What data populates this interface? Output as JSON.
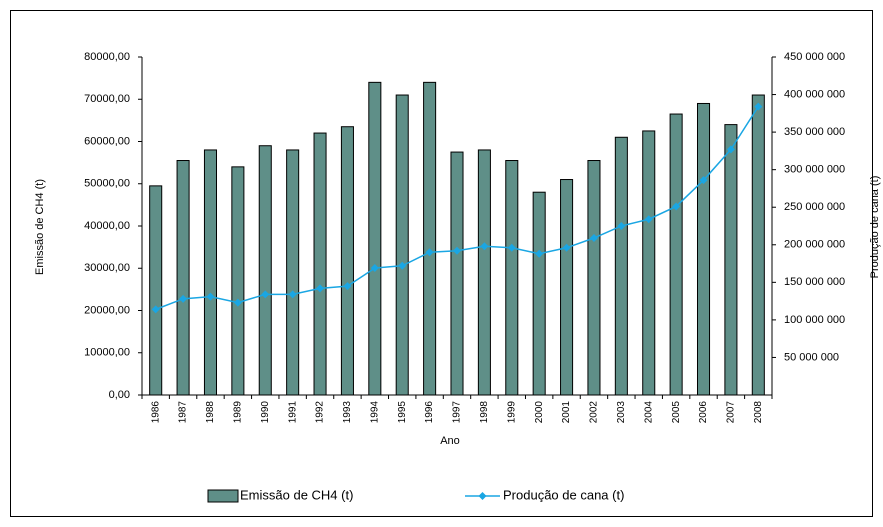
{
  "chart_data": {
    "type": "bar-line",
    "x_label": "Ano",
    "y_label": "Emissão de CH4 (t)",
    "y2_label": "Produção de cana (t)",
    "categories": [
      "1986",
      "1987",
      "1988",
      "1989",
      "1990",
      "1991",
      "1992",
      "1993",
      "1994",
      "1995",
      "1996",
      "1997",
      "1998",
      "1999",
      "2000",
      "2001",
      "2002",
      "2003",
      "2004",
      "2005",
      "2006",
      "2007",
      "2008"
    ],
    "series": [
      {
        "name": "Emissão de CH4 (t)",
        "type": "bar",
        "color": "#5f8f88",
        "values": [
          49500,
          55500,
          58000,
          54000,
          59000,
          58000,
          62000,
          63500,
          74000,
          71000,
          74000,
          57500,
          58000,
          55500,
          48000,
          51000,
          55500,
          61000,
          62500,
          66500,
          69000,
          64000,
          71000
        ]
      },
      {
        "name": "Produção de cana (t)",
        "type": "line",
        "axis": "y2",
        "color": "#1aa6e3",
        "values": [
          114000000,
          128000000,
          131000000,
          123000000,
          134000000,
          134000000,
          142000000,
          145000000,
          169000000,
          172000000,
          190000000,
          192000000,
          198000000,
          196000000,
          188000000,
          196000000,
          209000000,
          225000000,
          234000000,
          251000000,
          286000000,
          327000000,
          384000000
        ]
      }
    ],
    "ylim": [
      0,
      80000
    ],
    "yticks": [
      {
        "value": 0,
        "label": "0,00"
      },
      {
        "value": 10000,
        "label": "10000,00"
      },
      {
        "value": 20000,
        "label": "20000,00"
      },
      {
        "value": 30000,
        "label": "30000,00"
      },
      {
        "value": 40000,
        "label": "40000,00"
      },
      {
        "value": 50000,
        "label": "50000,00"
      },
      {
        "value": 60000,
        "label": "60000,00"
      },
      {
        "value": 70000,
        "label": "70000,00"
      },
      {
        "value": 80000,
        "label": "80000,00"
      }
    ],
    "y2lim": [
      0,
      450000000
    ],
    "y2ticks": [
      {
        "value": 50000000,
        "label": "50 000 000"
      },
      {
        "value": 100000000,
        "label": "100 000 000"
      },
      {
        "value": 150000000,
        "label": "150 000 000"
      },
      {
        "value": 200000000,
        "label": "200 000 000"
      },
      {
        "value": 250000000,
        "label": "250 000 000"
      },
      {
        "value": 300000000,
        "label": "300 000 000"
      },
      {
        "value": 350000000,
        "label": "350 000 000"
      },
      {
        "value": 400000000,
        "label": "400 000 000"
      },
      {
        "value": 450000000,
        "label": "450 000 000"
      }
    ],
    "legend": "bottom"
  }
}
